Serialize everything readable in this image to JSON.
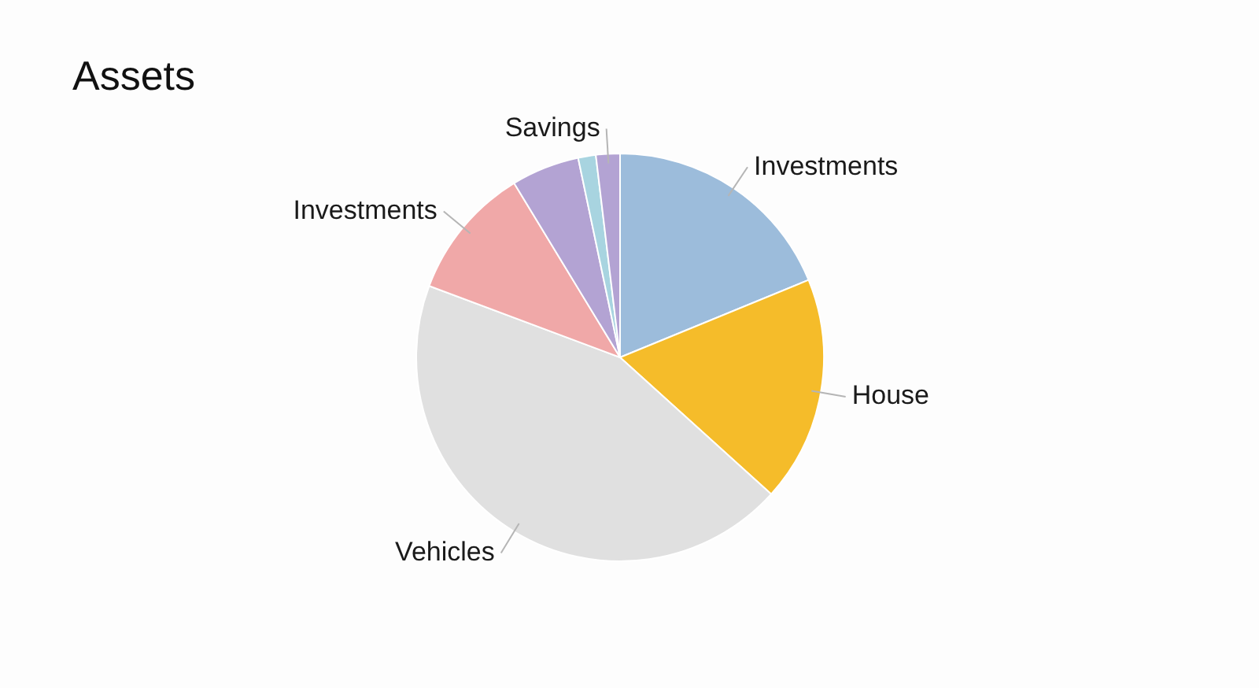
{
  "chart_data": {
    "type": "pie",
    "title": "Assets",
    "categories": [
      "Investments",
      "House",
      "Vehicles",
      "Investments",
      null,
      null,
      "Savings"
    ],
    "values": [
      18.8,
      17.9,
      44.0,
      10.6,
      5.4,
      1.4,
      1.9
    ],
    "colors": [
      "#9cbcdb",
      "#f5bc2a",
      "#e0e0e0",
      "#f0a8a8",
      "#b3a3d3",
      "#a8d4e0",
      "#b3a3d3"
    ]
  }
}
